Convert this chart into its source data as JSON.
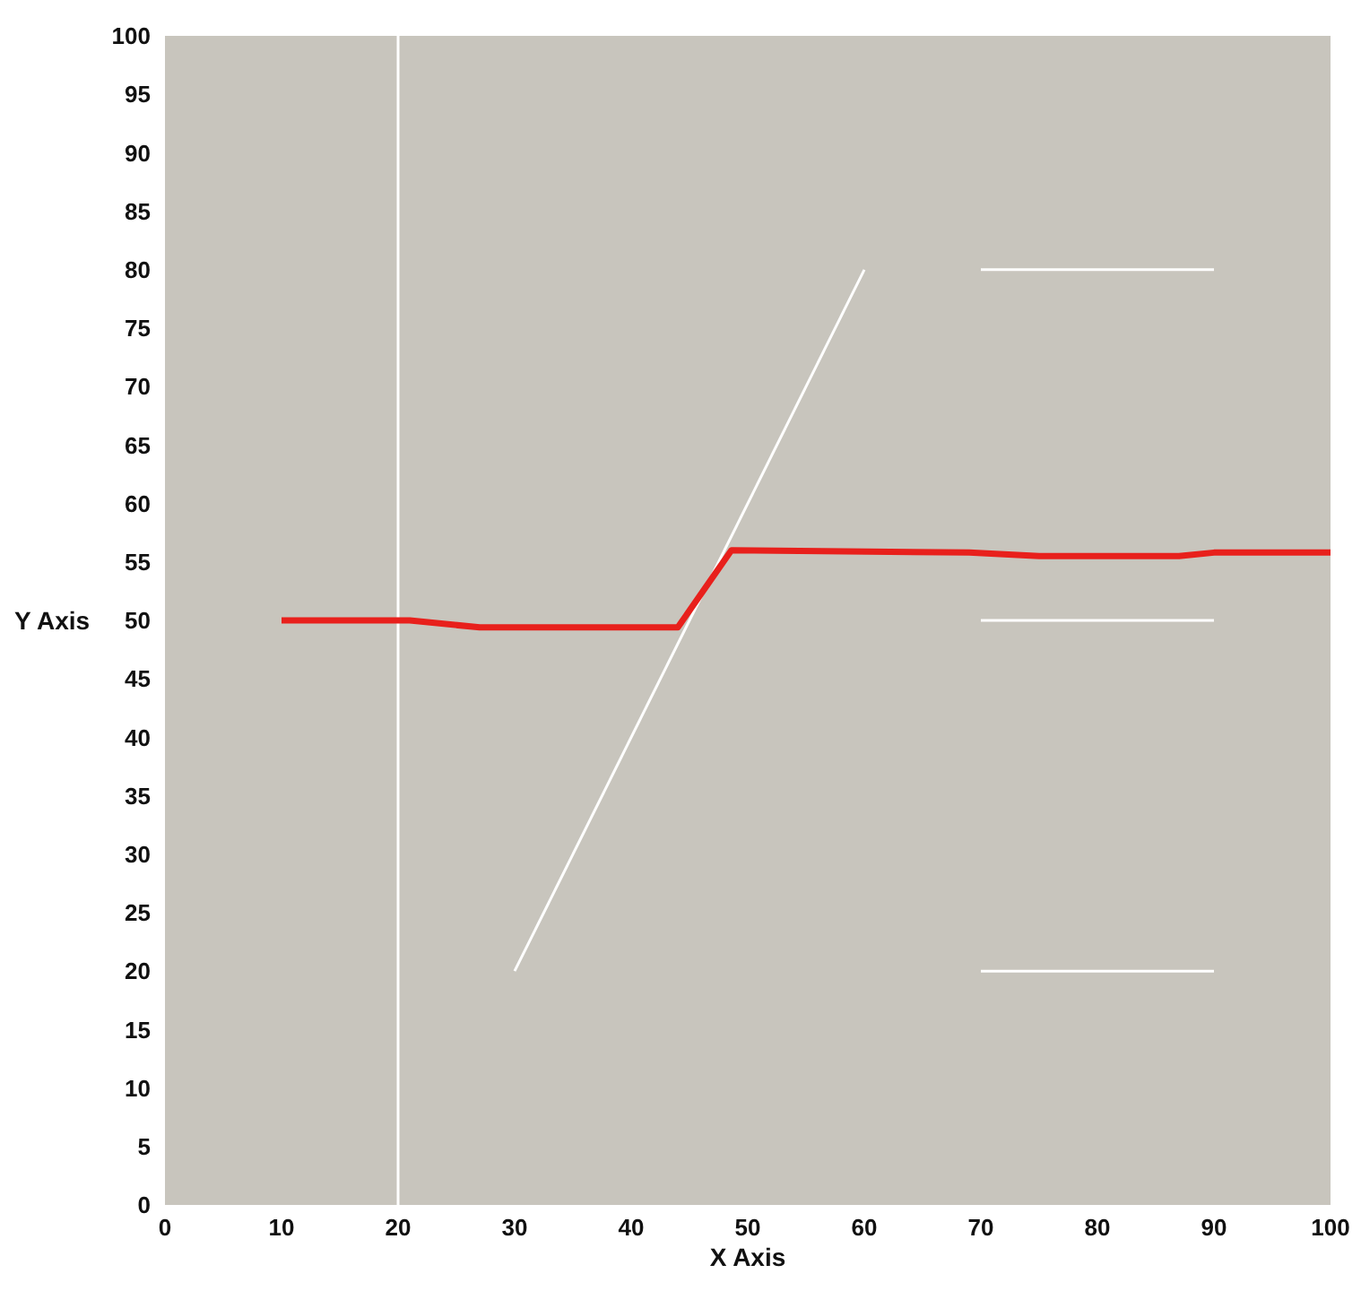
{
  "chart_data": {
    "type": "line",
    "xlabel": "X Axis",
    "ylabel": "Y Axis",
    "xlim": [
      0,
      100
    ],
    "ylim": [
      0,
      100
    ],
    "xticks": [
      0,
      10,
      20,
      30,
      40,
      50,
      60,
      70,
      80,
      90,
      100
    ],
    "yticks": [
      0,
      5,
      10,
      15,
      20,
      25,
      30,
      35,
      40,
      45,
      50,
      55,
      60,
      65,
      70,
      75,
      80,
      85,
      90,
      95,
      100
    ],
    "ref_lines": [
      {
        "axis": "x",
        "value": 20,
        "color": "#ffffff"
      }
    ],
    "series": [
      {
        "color": "#e8201c",
        "x": [
          10,
          21,
          27,
          44,
          48.6,
          69,
          75,
          87,
          90,
          100
        ],
        "values": [
          50,
          50,
          49.4,
          49.4,
          56,
          55.8,
          55.5,
          55.5,
          55.8,
          55.8
        ]
      },
      {
        "color": "#ffffff",
        "x": [
          30,
          60
        ],
        "values": [
          20,
          80
        ]
      },
      {
        "color": "#ffffff",
        "x": [
          70,
          90
        ],
        "values": [
          80,
          80
        ]
      },
      {
        "color": "#ffffff",
        "x": [
          70,
          90
        ],
        "values": [
          50,
          50
        ]
      },
      {
        "color": "#ffffff",
        "x": [
          70,
          90
        ],
        "values": [
          20,
          20
        ]
      }
    ]
  }
}
